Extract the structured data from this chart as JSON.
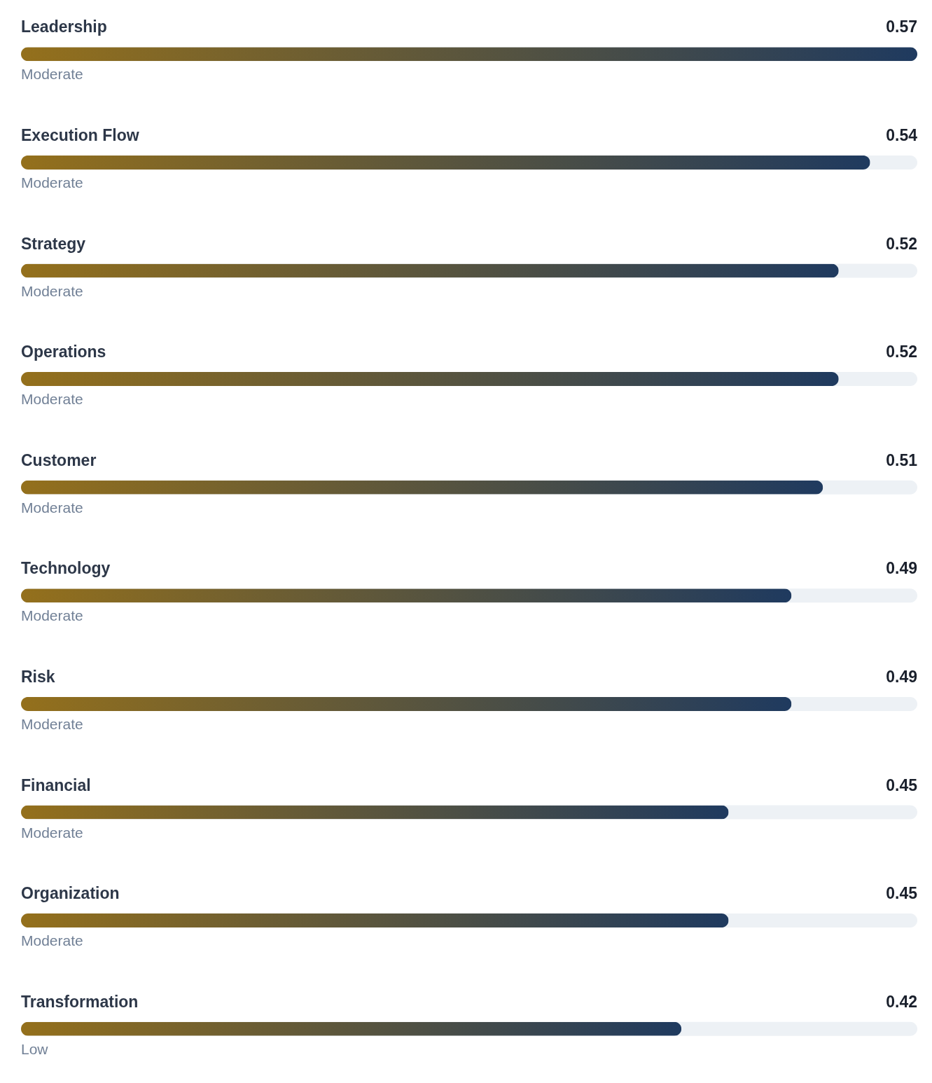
{
  "chart_data": {
    "type": "bar",
    "orientation": "horizontal",
    "categories": [
      "Leadership",
      "Execution Flow",
      "Strategy",
      "Operations",
      "Customer",
      "Technology",
      "Risk",
      "Financial",
      "Organization",
      "Transformation"
    ],
    "values": [
      0.57,
      0.54,
      0.52,
      0.52,
      0.51,
      0.49,
      0.49,
      0.45,
      0.45,
      0.42
    ],
    "color": "#1f3a5f",
    "xlim": [
      0,
      0.57
    ],
    "data_labels": true,
    "annotations": [
      "Moderate",
      "Moderate",
      "Moderate",
      "Moderate",
      "Moderate",
      "Moderate",
      "Moderate",
      "Moderate",
      "Moderate",
      "Low"
    ]
  }
}
